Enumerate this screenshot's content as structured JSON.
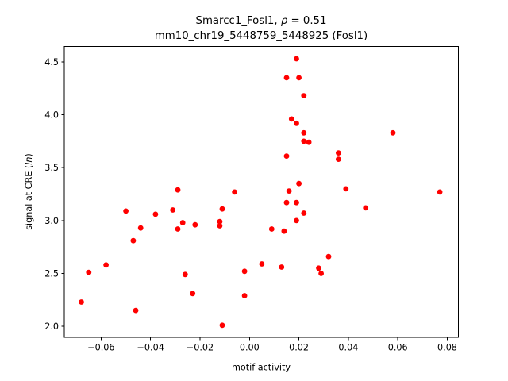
{
  "window": {
    "background": "#ffffff"
  },
  "chart_data": {
    "type": "scatter",
    "title": {
      "line1_prefix": "Smarcc1_Fosl1, ",
      "line1_rho": "ρ",
      "line1_suffix": " = 0.51",
      "line2": "mm10_chr19_5448759_5448925 (Fosl1)"
    },
    "xlabel": "motif activity",
    "ylabel": {
      "prefix": "signal at CRE (",
      "italic_part": "ln",
      "suffix": ")"
    },
    "marker_color": "#ff0000",
    "axis_color": "#000000",
    "grid": false,
    "legend": null,
    "xlim": [
      -0.0749,
      0.0845
    ],
    "ylim": [
      1.896,
      4.646
    ],
    "xticks": {
      "values": [
        -0.06,
        -0.04,
        -0.02,
        0.0,
        0.02,
        0.04,
        0.06,
        0.08
      ],
      "labels": [
        "−0.06",
        "−0.04",
        "−0.02",
        "0.00",
        "0.02",
        "0.04",
        "0.06",
        "0.08"
      ]
    },
    "yticks": {
      "values": [
        2.0,
        2.5,
        3.0,
        3.5,
        4.0,
        4.5
      ],
      "labels": [
        "2.0",
        "2.5",
        "3.0",
        "3.5",
        "4.0",
        "4.5"
      ]
    },
    "points": [
      [
        -0.068,
        2.23
      ],
      [
        -0.065,
        2.51
      ],
      [
        -0.058,
        2.58
      ],
      [
        -0.05,
        3.09
      ],
      [
        -0.047,
        2.81
      ],
      [
        -0.046,
        2.15
      ],
      [
        -0.044,
        2.93
      ],
      [
        -0.038,
        3.06
      ],
      [
        -0.031,
        3.1
      ],
      [
        -0.029,
        3.29
      ],
      [
        -0.029,
        2.92
      ],
      [
        -0.027,
        2.98
      ],
      [
        -0.026,
        2.49
      ],
      [
        -0.023,
        2.31
      ],
      [
        -0.022,
        2.96
      ],
      [
        -0.012,
        2.99
      ],
      [
        -0.012,
        2.95
      ],
      [
        -0.011,
        3.11
      ],
      [
        -0.011,
        2.01
      ],
      [
        -0.006,
        3.27
      ],
      [
        -0.002,
        2.52
      ],
      [
        -0.002,
        2.29
      ],
      [
        0.005,
        2.59
      ],
      [
        0.009,
        2.92
      ],
      [
        0.013,
        2.56
      ],
      [
        0.014,
        2.9
      ],
      [
        0.015,
        3.61
      ],
      [
        0.015,
        3.17
      ],
      [
        0.015,
        4.35
      ],
      [
        0.016,
        3.28
      ],
      [
        0.017,
        3.96
      ],
      [
        0.019,
        4.53
      ],
      [
        0.019,
        3.92
      ],
      [
        0.019,
        3.17
      ],
      [
        0.019,
        3.0
      ],
      [
        0.02,
        4.35
      ],
      [
        0.02,
        3.35
      ],
      [
        0.022,
        4.18
      ],
      [
        0.022,
        3.83
      ],
      [
        0.022,
        3.75
      ],
      [
        0.022,
        3.07
      ],
      [
        0.024,
        3.74
      ],
      [
        0.028,
        2.55
      ],
      [
        0.029,
        2.5
      ],
      [
        0.032,
        2.66
      ],
      [
        0.036,
        3.64
      ],
      [
        0.036,
        3.58
      ],
      [
        0.039,
        3.3
      ],
      [
        0.047,
        3.12
      ],
      [
        0.058,
        3.83
      ],
      [
        0.077,
        3.27
      ]
    ]
  }
}
